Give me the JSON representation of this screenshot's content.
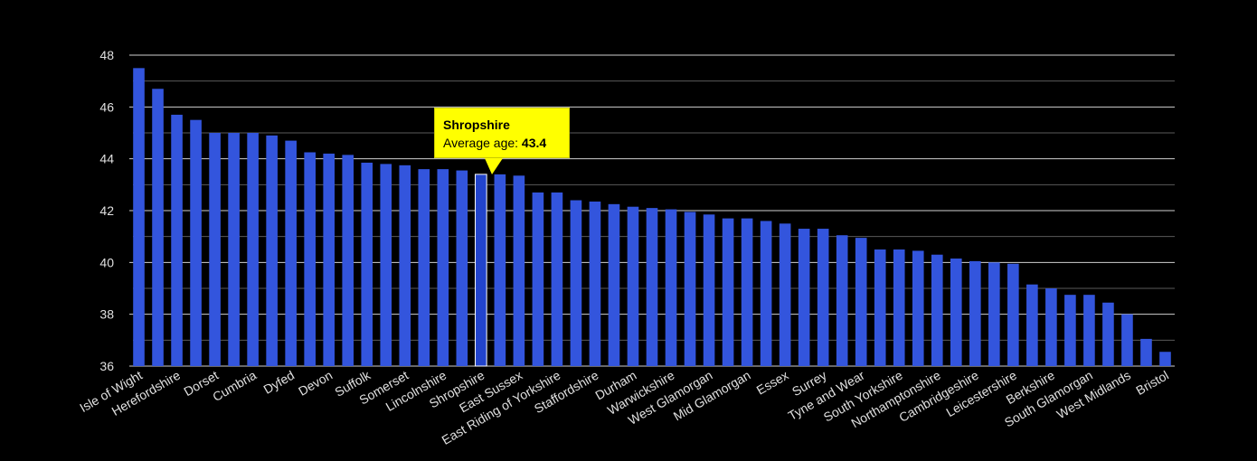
{
  "chart_data": {
    "type": "bar",
    "title": "",
    "xlabel": "",
    "ylabel": "",
    "ylim": [
      36,
      48
    ],
    "yticks": [
      36,
      38,
      40,
      42,
      44,
      46,
      48
    ],
    "bar_color": "#3355dd",
    "highlight_color": "#2244cc",
    "categories": [
      "Isle of Wight",
      "",
      "Herefordshire",
      "",
      "Dorset",
      "",
      "Cumbria",
      "",
      "Dyfed",
      "",
      "Devon",
      "",
      "Suffolk",
      "",
      "Somerset",
      "",
      "Lincolnshire",
      "",
      "Shropshire",
      "",
      "East Sussex",
      "",
      "East Riding of Yorkshire",
      "",
      "Staffordshire",
      "",
      "Durham",
      "",
      "Warwickshire",
      "",
      "West Glamorgan",
      "",
      "Mid Glamorgan",
      "",
      "Essex",
      "",
      "Surrey",
      "",
      "Tyne and Wear",
      "",
      "South Yorkshire",
      "",
      "Northamptonshire",
      "",
      "Cambridgeshire",
      "",
      "Leicestershire",
      "",
      "Berkshire",
      "",
      "South Glamorgan",
      "",
      "West Midlands",
      "",
      "Bristol"
    ],
    "values": [
      47.5,
      46.7,
      45.7,
      45.5,
      45.0,
      45.0,
      45.0,
      44.9,
      44.7,
      44.25,
      44.2,
      44.15,
      43.85,
      43.8,
      43.75,
      43.6,
      43.6,
      43.55,
      43.4,
      43.4,
      43.35,
      42.7,
      42.7,
      42.4,
      42.35,
      42.25,
      42.15,
      42.1,
      42.05,
      41.95,
      41.85,
      41.7,
      41.7,
      41.6,
      41.5,
      41.3,
      41.3,
      41.05,
      40.95,
      40.5,
      40.5,
      40.45,
      40.3,
      40.15,
      40.05,
      40.0,
      39.95,
      39.15,
      39.0,
      38.75,
      38.75,
      38.45,
      38.0,
      37.05,
      36.55
    ],
    "highlight_index": 18
  },
  "tooltip": {
    "title": "Shropshire",
    "label": "Average age: ",
    "value": "43.4"
  }
}
